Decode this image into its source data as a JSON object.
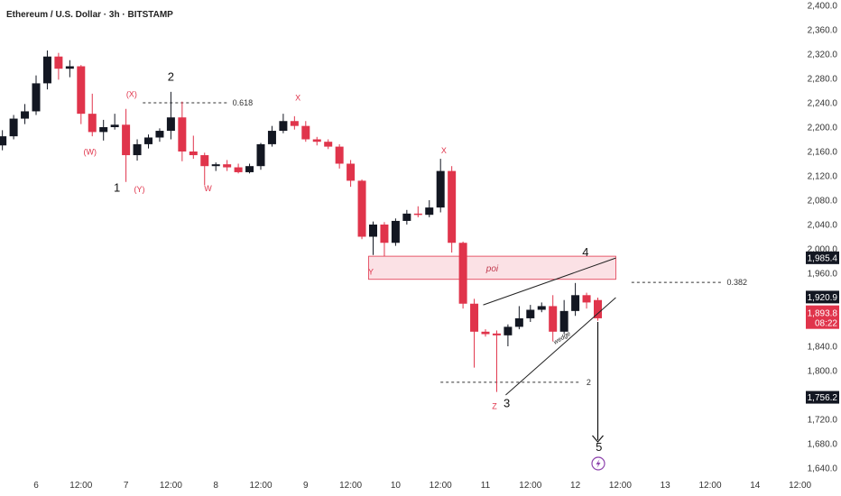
{
  "chart_data": {
    "type": "candlestick",
    "title": "Ethereum / U.S. Dollar · 3h · BITSTAMP",
    "y_ticks": [
      1640,
      1680,
      1720,
      1760,
      1800,
      1840,
      1880,
      1920,
      1960,
      2000,
      2040,
      2080,
      2120,
      2160,
      2200,
      2240,
      2280,
      2320,
      2360,
      2400
    ],
    "ylim": [
      1625,
      2405
    ],
    "x_ticks": [
      {
        "label": "6",
        "idx": 0
      },
      {
        "label": "12:00",
        "idx": 4
      },
      {
        "label": "7",
        "idx": 8
      },
      {
        "label": "12:00",
        "idx": 12
      },
      {
        "label": "8",
        "idx": 16
      },
      {
        "label": "12:00",
        "idx": 20
      },
      {
        "label": "9",
        "idx": 24
      },
      {
        "label": "12:00",
        "idx": 28
      },
      {
        "label": "10",
        "idx": 32
      },
      {
        "label": "12:00",
        "idx": 36
      },
      {
        "label": "11",
        "idx": 40
      },
      {
        "label": "12:00",
        "idx": 44
      },
      {
        "label": "12",
        "idx": 48
      },
      {
        "label": "12:00",
        "idx": 52
      },
      {
        "label": "13",
        "idx": 56
      },
      {
        "label": "12:00",
        "idx": 60
      },
      {
        "label": "14",
        "idx": 64
      },
      {
        "label": "12:00",
        "idx": 68
      }
    ],
    "candles": [
      {
        "i": -3,
        "o": 2170,
        "h": 2195,
        "c": 2185,
        "l": 2162
      },
      {
        "i": -2,
        "o": 2185,
        "h": 2220,
        "c": 2214,
        "l": 2180
      },
      {
        "i": -1,
        "o": 2214,
        "h": 2238,
        "c": 2226,
        "l": 2205
      },
      {
        "i": 0,
        "o": 2226,
        "h": 2285,
        "c": 2272,
        "l": 2220
      },
      {
        "i": 1,
        "o": 2272,
        "h": 2326,
        "c": 2316,
        "l": 2262
      },
      {
        "i": 2,
        "o": 2316,
        "h": 2322,
        "c": 2296,
        "l": 2278
      },
      {
        "i": 3,
        "o": 2296,
        "h": 2310,
        "c": 2300,
        "l": 2282
      },
      {
        "i": 4,
        "o": 2300,
        "h": 2302,
        "c": 2222,
        "l": 2205
      },
      {
        "i": 5,
        "o": 2222,
        "h": 2255,
        "c": 2192,
        "l": 2185
      },
      {
        "i": 6,
        "o": 2192,
        "h": 2212,
        "c": 2200,
        "l": 2178
      },
      {
        "i": 7,
        "o": 2200,
        "h": 2222,
        "c": 2204,
        "l": 2196
      },
      {
        "i": 8,
        "o": 2204,
        "h": 2230,
        "c": 2154,
        "l": 2110
      },
      {
        "i": 9,
        "o": 2154,
        "h": 2180,
        "c": 2172,
        "l": 2145
      },
      {
        "i": 10,
        "o": 2172,
        "h": 2188,
        "c": 2183,
        "l": 2165
      },
      {
        "i": 11,
        "o": 2183,
        "h": 2198,
        "c": 2194,
        "l": 2176
      },
      {
        "i": 12,
        "o": 2194,
        "h": 2258,
        "c": 2216,
        "l": 2180
      },
      {
        "i": 13,
        "o": 2216,
        "h": 2242,
        "c": 2160,
        "l": 2144
      },
      {
        "i": 14,
        "o": 2160,
        "h": 2186,
        "c": 2154,
        "l": 2148
      },
      {
        "i": 15,
        "o": 2154,
        "h": 2158,
        "c": 2136,
        "l": 2105
      },
      {
        "i": 16,
        "o": 2136,
        "h": 2142,
        "c": 2139,
        "l": 2128
      },
      {
        "i": 17,
        "o": 2139,
        "h": 2146,
        "c": 2134,
        "l": 2128
      },
      {
        "i": 18,
        "o": 2134,
        "h": 2140,
        "c": 2126,
        "l": 2124
      },
      {
        "i": 19,
        "o": 2126,
        "h": 2140,
        "c": 2136,
        "l": 2124
      },
      {
        "i": 20,
        "o": 2136,
        "h": 2174,
        "c": 2172,
        "l": 2130
      },
      {
        "i": 21,
        "o": 2172,
        "h": 2202,
        "c": 2194,
        "l": 2168
      },
      {
        "i": 22,
        "o": 2194,
        "h": 2222,
        "c": 2210,
        "l": 2190
      },
      {
        "i": 23,
        "o": 2210,
        "h": 2218,
        "c": 2202,
        "l": 2196
      },
      {
        "i": 24,
        "o": 2202,
        "h": 2210,
        "c": 2180,
        "l": 2176
      },
      {
        "i": 25,
        "o": 2180,
        "h": 2184,
        "c": 2176,
        "l": 2170
      },
      {
        "i": 26,
        "o": 2176,
        "h": 2180,
        "c": 2168,
        "l": 2164
      },
      {
        "i": 27,
        "o": 2168,
        "h": 2172,
        "c": 2140,
        "l": 2132
      },
      {
        "i": 28,
        "o": 2140,
        "h": 2146,
        "c": 2112,
        "l": 2102
      },
      {
        "i": 29,
        "o": 2112,
        "h": 2114,
        "c": 2020,
        "l": 2016
      },
      {
        "i": 30,
        "o": 2020,
        "h": 2045,
        "c": 2040,
        "l": 1990
      },
      {
        "i": 31,
        "o": 2040,
        "h": 2044,
        "c": 2010,
        "l": 1988
      },
      {
        "i": 32,
        "o": 2010,
        "h": 2050,
        "c": 2046,
        "l": 2005
      },
      {
        "i": 33,
        "o": 2046,
        "h": 2064,
        "c": 2058,
        "l": 2040
      },
      {
        "i": 34,
        "o": 2058,
        "h": 2070,
        "c": 2056,
        "l": 2052
      },
      {
        "i": 35,
        "o": 2056,
        "h": 2080,
        "c": 2068,
        "l": 2052
      },
      {
        "i": 36,
        "o": 2068,
        "h": 2148,
        "c": 2128,
        "l": 2060
      },
      {
        "i": 37,
        "o": 2128,
        "h": 2136,
        "c": 2010,
        "l": 1994
      },
      {
        "i": 38,
        "o": 2010,
        "h": 2012,
        "c": 1910,
        "l": 1902
      },
      {
        "i": 39,
        "o": 1910,
        "h": 1918,
        "c": 1864,
        "l": 1805
      },
      {
        "i": 40,
        "o": 1864,
        "h": 1868,
        "c": 1860,
        "l": 1856
      },
      {
        "i": 41,
        "o": 1861,
        "h": 1866,
        "c": 1858,
        "l": 1765
      },
      {
        "i": 42,
        "o": 1858,
        "h": 1876,
        "c": 1872,
        "l": 1840
      },
      {
        "i": 43,
        "o": 1872,
        "h": 1906,
        "c": 1886,
        "l": 1868
      },
      {
        "i": 44,
        "o": 1886,
        "h": 1908,
        "c": 1900,
        "l": 1880
      },
      {
        "i": 45,
        "o": 1900,
        "h": 1912,
        "c": 1906,
        "l": 1896
      },
      {
        "i": 46,
        "o": 1906,
        "h": 1924,
        "c": 1864,
        "l": 1848
      },
      {
        "i": 47,
        "o": 1864,
        "h": 1916,
        "c": 1898,
        "l": 1860
      },
      {
        "i": 48,
        "o": 1898,
        "h": 1944,
        "c": 1924,
        "l": 1890
      },
      {
        "i": 49,
        "o": 1924,
        "h": 1928,
        "c": 1912,
        "l": 1902
      },
      {
        "i": 50,
        "o": 1916,
        "h": 1920,
        "c": 1886,
        "l": 1882
      }
    ],
    "price_tags": [
      {
        "text": "2,000.0",
        "price": 2000,
        "bg": "#ffffff",
        "fg": "#333333"
      },
      {
        "text": "1,985.4",
        "price": 1985.4,
        "bg": "#131722",
        "fg": "#ffffff"
      },
      {
        "text": "1,920.9",
        "price": 1920.9,
        "bg": "#131722",
        "fg": "#ffffff"
      },
      {
        "text": "1,756.2",
        "price": 1756.2,
        "bg": "#131722",
        "fg": "#ffffff"
      }
    ],
    "current_tag": {
      "price": "1,893.8",
      "countdown": "08:22",
      "bg": "#e0344b"
    },
    "level_lines": [
      {
        "label": "0.618",
        "price": 2240,
        "from_idx": 9.5,
        "to_idx": 17
      },
      {
        "label": "0.382",
        "price": 1945,
        "from_idx": 53,
        "to_idx": 61
      },
      {
        "label": "2",
        "price": 1781,
        "from_idx": 36,
        "to_idx": 48.5
      }
    ],
    "poi": {
      "label": "poi",
      "top": 1988,
      "bottom": 1950,
      "from_idx": 29.6,
      "to_idx": 51.6
    },
    "wedge": {
      "label": "wedge",
      "upper": [
        [
          39.8,
          1908
        ],
        [
          51.6,
          1985
        ]
      ],
      "lower": [
        [
          41.8,
          1760
        ],
        [
          51.6,
          1920
        ]
      ]
    },
    "wave_labels": [
      {
        "text": "(X)",
        "idx": 8.5,
        "price": 2250,
        "color": "red"
      },
      {
        "text": "(W)",
        "idx": 4.8,
        "price": 2155,
        "color": "red"
      },
      {
        "text": "1",
        "idx": 7.2,
        "price": 2094,
        "color": "black"
      },
      {
        "text": "(Y)",
        "idx": 9.2,
        "price": 2093,
        "color": "red"
      },
      {
        "text": "2",
        "idx": 12.0,
        "price": 2276,
        "color": "black"
      },
      {
        "text": "W",
        "idx": 15.3,
        "price": 2095,
        "color": "red"
      },
      {
        "text": "X",
        "idx": 23.3,
        "price": 2244,
        "color": "red"
      },
      {
        "text": "X",
        "idx": 36.3,
        "price": 2157,
        "color": "red"
      },
      {
        "text": "Y",
        "idx": 29.8,
        "price": 1958,
        "color": "red"
      },
      {
        "text": "Z",
        "idx": 40.8,
        "price": 1737,
        "color": "red"
      },
      {
        "text": "3",
        "idx": 41.9,
        "price": 1740,
        "color": "black"
      },
      {
        "text": "4",
        "idx": 48.9,
        "price": 1988,
        "color": "black"
      },
      {
        "text": "5",
        "idx": 50.1,
        "price": 1668,
        "color": "black"
      }
    ],
    "arrow": {
      "idx": 50.0,
      "from_price": 1880,
      "to_price": 1680
    },
    "colors": {
      "up": "#131722",
      "down": "#e0344b",
      "poi_fill": "#f9d4da",
      "poi_stroke": "#e0344b"
    }
  }
}
